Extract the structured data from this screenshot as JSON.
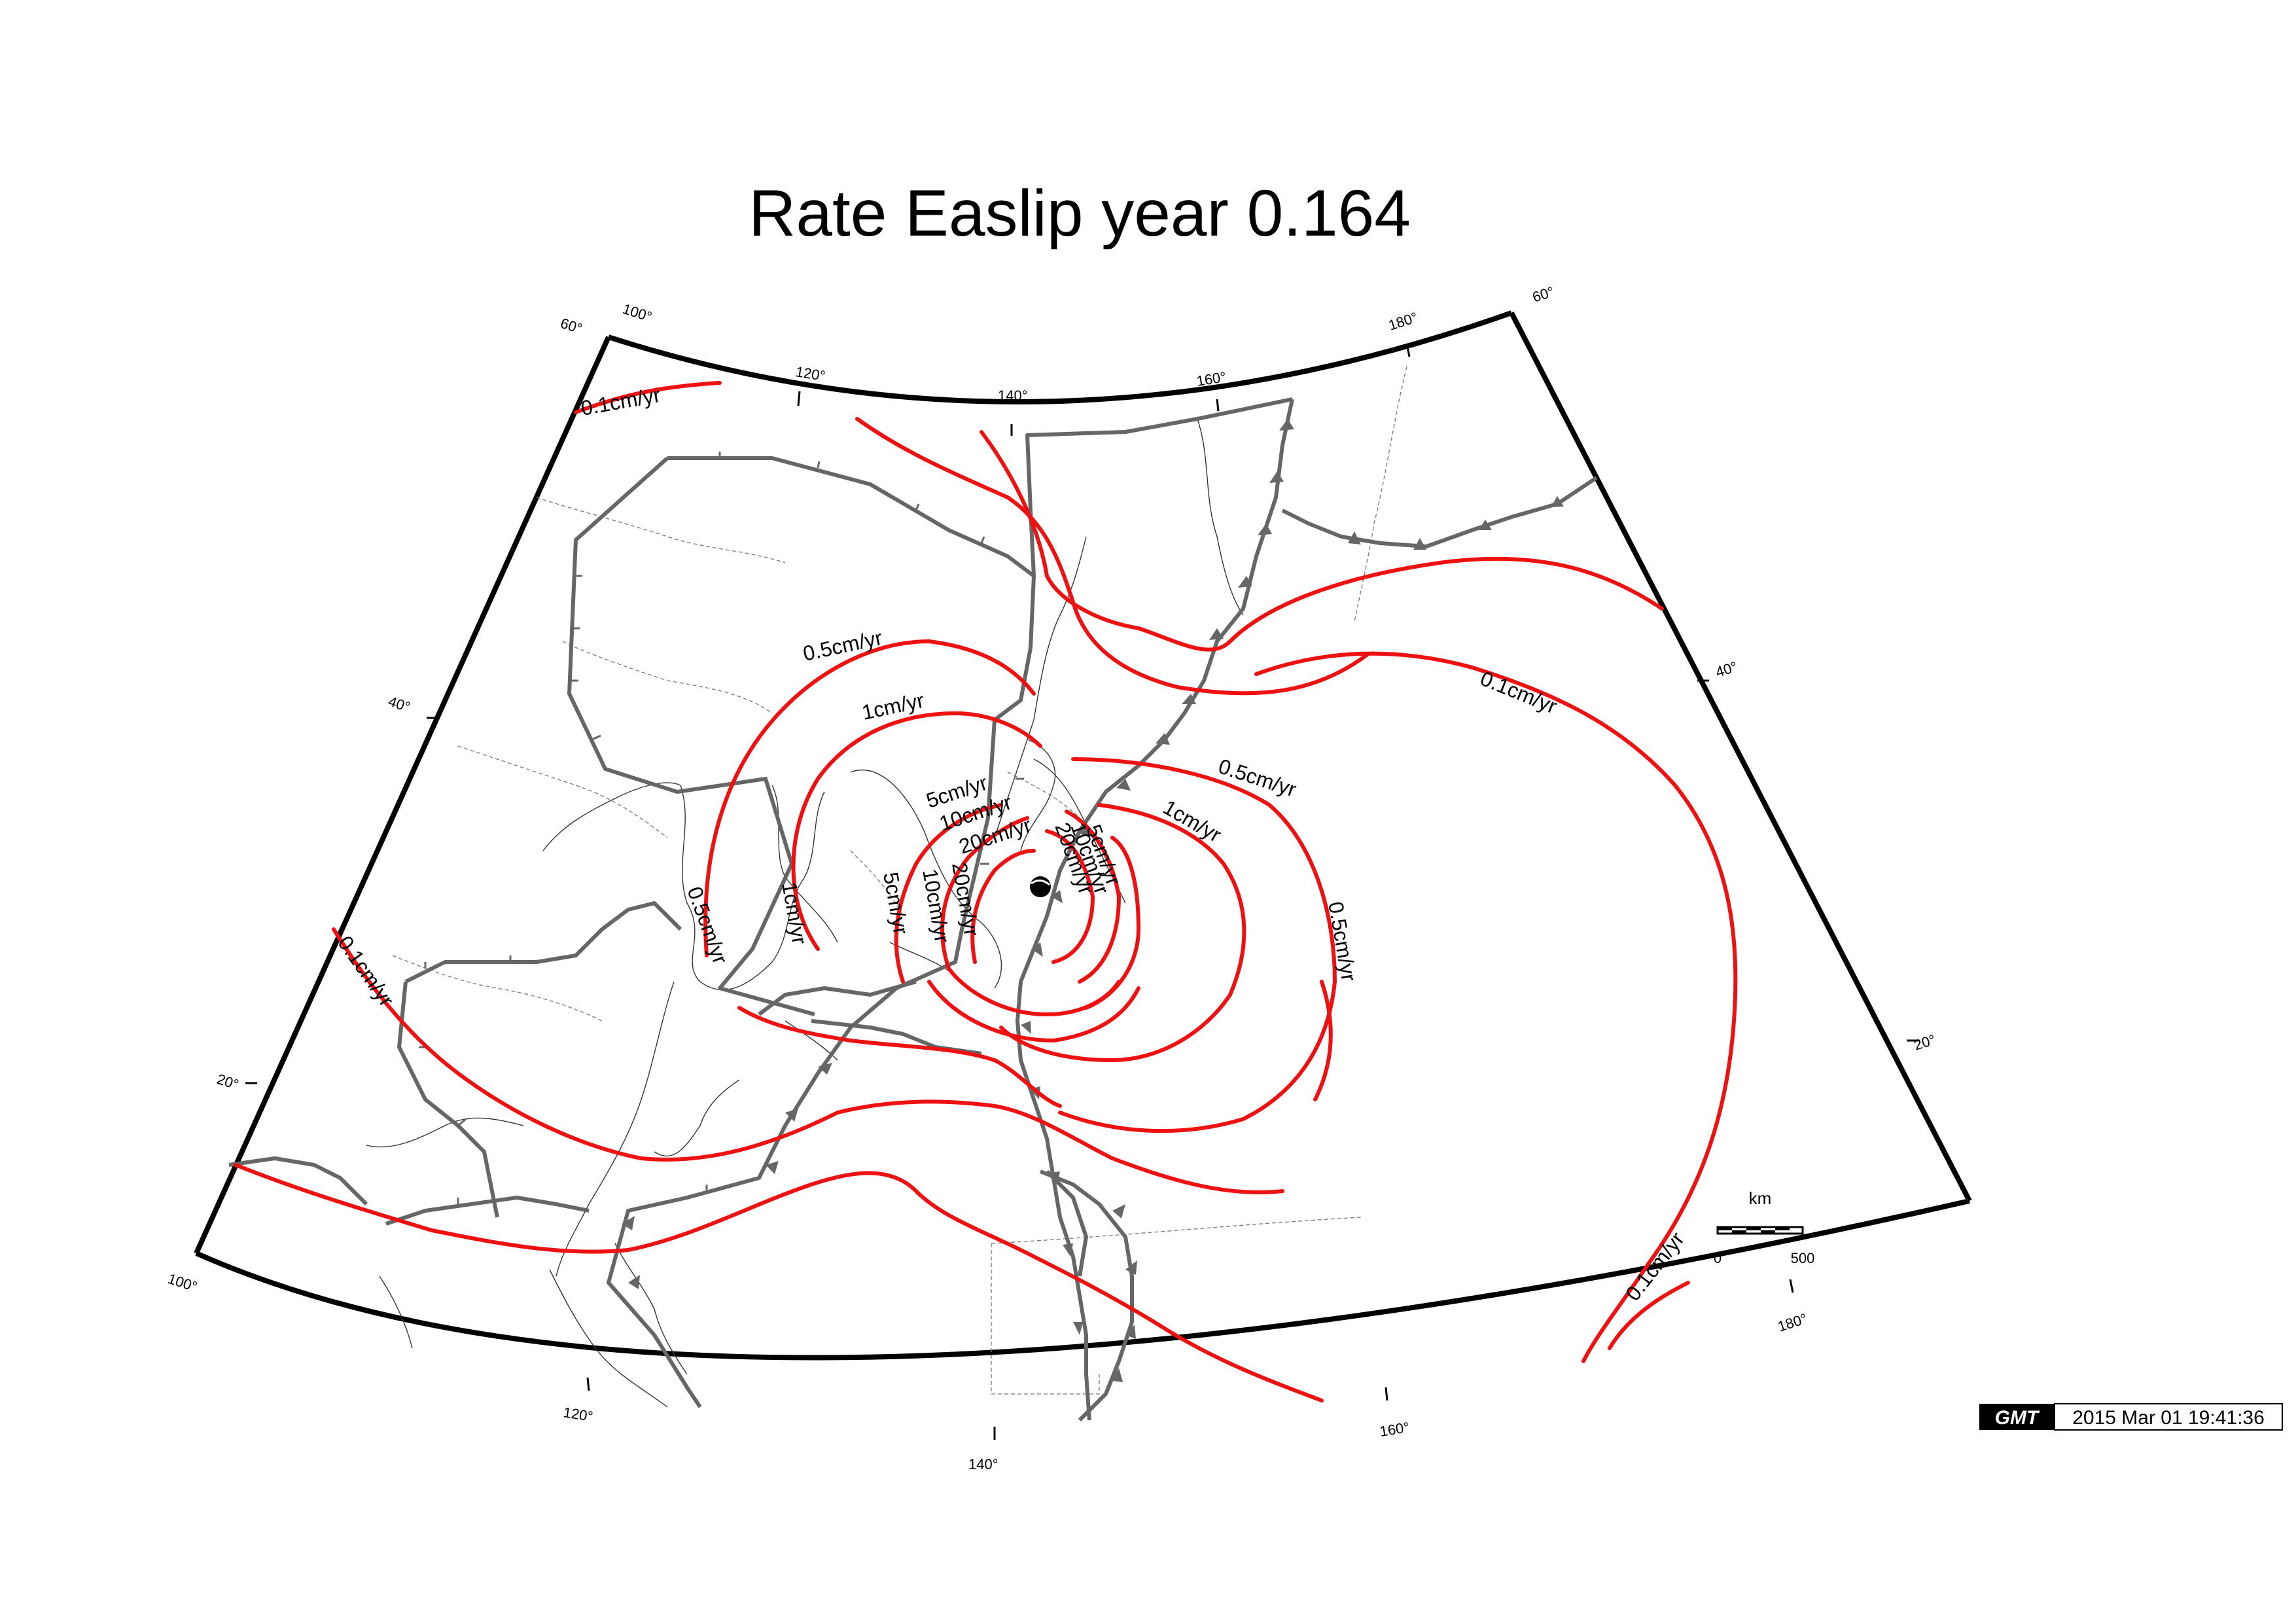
{
  "title": "Rate Easlip year 0.164",
  "graticule": {
    "top_lon": [
      "100°",
      "120°",
      "140°",
      "160°",
      "180°"
    ],
    "bottom_lon": [
      "100°",
      "120°",
      "140°",
      "160°",
      "180°"
    ],
    "left_lat": [
      "60°",
      "40°",
      "20°"
    ],
    "right_lat": [
      "60°",
      "40°",
      "20°"
    ]
  },
  "contour_labels": [
    "0.1cm/yr",
    "0.5cm/yr",
    "1cm/yr",
    "5cm/yr",
    "10cm/yr",
    "20cm/yr"
  ],
  "scale_bar": {
    "unit": "km",
    "min": "0",
    "max": "500"
  },
  "stamp": {
    "logo_text": "GMT",
    "timestamp": "2015 Mar 01 19:41:36"
  },
  "colors": {
    "contour": "#ee1111",
    "plate": "#666666",
    "frame": "#000000"
  }
}
